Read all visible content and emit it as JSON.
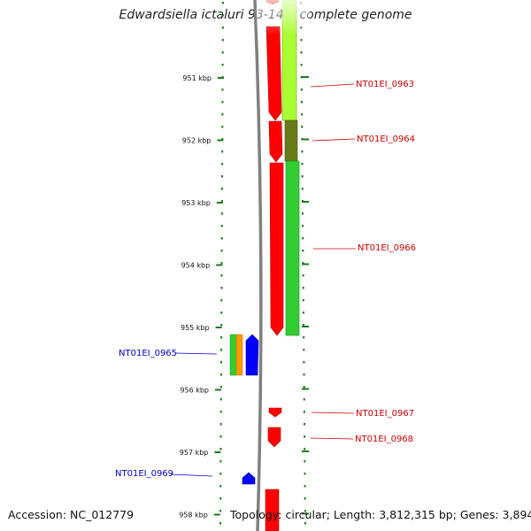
{
  "title": "Edwardsiella ictaluri 93-146, complete genome",
  "footer": {
    "accession": "Accession: NC_012779",
    "topology": "Topology: circular; Length: 3,812,315 bp; Genes: 3,894"
  },
  "scale": {
    "unit": "kbp",
    "ticks": [
      {
        "label": "951 kbp",
        "kbp": 951
      },
      {
        "label": "952 kbp",
        "kbp": 952
      },
      {
        "label": "953 kbp",
        "kbp": 953
      },
      {
        "label": "954 kbp",
        "kbp": 954
      },
      {
        "label": "955 kbp",
        "kbp": 955
      },
      {
        "label": "956 kbp",
        "kbp": 956
      },
      {
        "label": "957 kbp",
        "kbp": 957
      },
      {
        "label": "958 kbp",
        "kbp": 958
      }
    ]
  },
  "genes": {
    "forward": [
      {
        "label": "NT01EI_0963",
        "color": "#cc0000"
      },
      {
        "label": "NT01EI_0964",
        "color": "#cc0000"
      },
      {
        "label": "NT01EI_0966",
        "color": "#cc0000"
      },
      {
        "label": "NT01EI_0967",
        "color": "#cc0000"
      },
      {
        "label": "NT01EI_0968",
        "color": "#cc0000"
      }
    ],
    "reverse": [
      {
        "label": "NT01EI_0965",
        "color": "#0000cc"
      },
      {
        "label": "NT01EI_0969",
        "color": "#0000cc"
      }
    ]
  },
  "colors": {
    "forward_gene": "#ff0000",
    "reverse_gene": "#0000ff",
    "backbone": "#808080",
    "tick": "#1f7a1f",
    "cog_lime": "#aaff33",
    "cog_olive": "#667a1a",
    "cog_green": "#33cc33",
    "cog_orange": "#ff9900"
  }
}
